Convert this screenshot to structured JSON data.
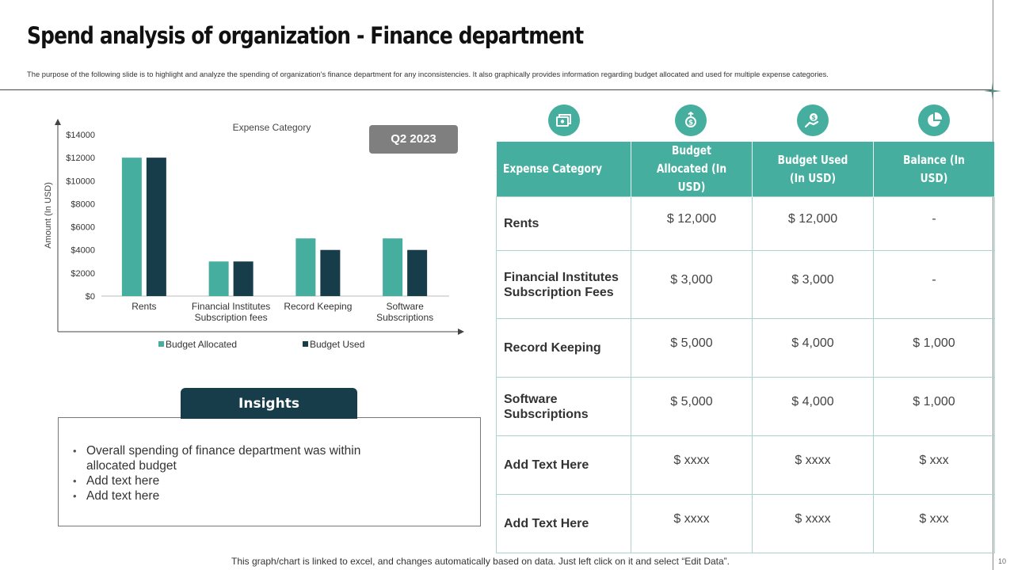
{
  "slide": {
    "title": "Spend analysis of organization - Finance department",
    "subtitle": "The purpose of the following slide is to highlight and analyze the spending of organization’s finance department for any inconsistencies. It also graphically provides information regarding budget allocated and used for multiple expense categories.",
    "footer_note": "This graph/chart is linked to excel, and changes automatically based on data. Just left click on it and select “Edit Data”.",
    "page_number": "10"
  },
  "badge": {
    "label": "Q2 2023"
  },
  "chart_data": {
    "type": "bar",
    "title": "Expense Category",
    "ylabel": "Amount (In USD)",
    "xlabel": "",
    "categories": [
      [
        "Rents"
      ],
      [
        "Financial Institutes",
        "Subscription fees"
      ],
      [
        "Record Keeping"
      ],
      [
        "Software",
        "Subscriptions"
      ]
    ],
    "series": [
      {
        "name": "Budget Allocated",
        "color": "#45ae9e",
        "values": [
          12000,
          3000,
          5000,
          5000
        ]
      },
      {
        "name": "Budget Used",
        "color": "#173d4a",
        "values": [
          12000,
          3000,
          4000,
          4000
        ]
      }
    ],
    "ylim": [
      0,
      14000
    ],
    "yticks": [
      "$0",
      "$2000",
      "$4000",
      "$6000",
      "$8000",
      "$10000",
      "$12000",
      "$14000"
    ],
    "grid": false,
    "legend": "bottom"
  },
  "insights": {
    "heading": "Insights",
    "bullets": [
      "Overall spending of finance department was within allocated budget",
      "Add text here",
      "Add text here"
    ]
  },
  "table": {
    "icons": [
      "budget-allocated-icon",
      "budget-used-icon",
      "money-hand-icon",
      "pie-chart-icon"
    ],
    "headers": [
      "Expense Category",
      "Budget Allocated (In USD)",
      "Budget Used (In USD)",
      "Balance (In USD)"
    ],
    "rows": [
      {
        "category": "Rents",
        "allocated": "$ 12,000",
        "used": "$ 12,000",
        "balance": "-"
      },
      {
        "category": "Financial Institutes Subscription Fees",
        "allocated": "$ 3,000",
        "used": "$ 3,000",
        "balance": "-"
      },
      {
        "category": "Record Keeping",
        "allocated": "$ 5,000",
        "used": "$ 4,000",
        "balance": "$ 1,000"
      },
      {
        "category": "Software Subscriptions",
        "allocated": "$ 5,000",
        "used": "$ 4,000",
        "balance": "$ 1,000"
      },
      {
        "category": "Add Text Here",
        "allocated": "$ xxxx",
        "used": "$ xxxx",
        "balance": "$ xxx"
      },
      {
        "category": "Add Text Here",
        "allocated": "$ xxxx",
        "used": "$ xxxx",
        "balance": "$ xxx"
      }
    ]
  }
}
